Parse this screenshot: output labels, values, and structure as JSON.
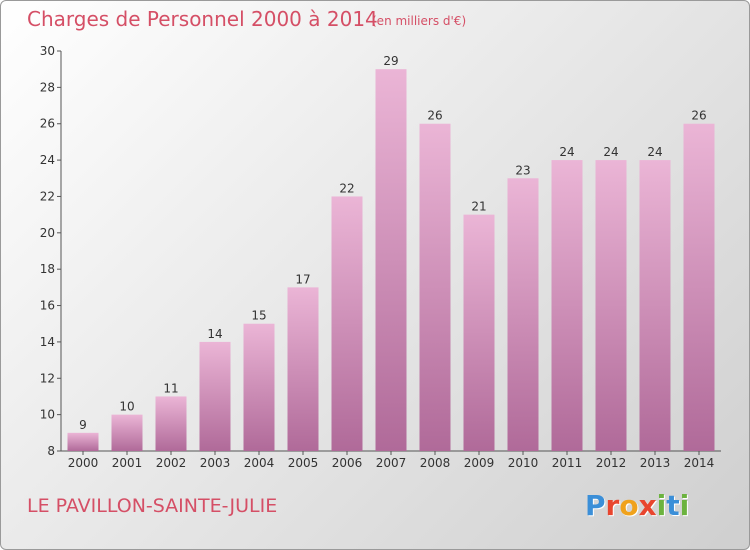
{
  "header": {
    "title": "Charges de Personnel 2000 à 2014",
    "subtitle": "(en milliers d'€)"
  },
  "footer": {
    "place": "LE PAVILLON-SAINTE-JULIE",
    "logo": {
      "text": "Proxiti",
      "letter_colors": [
        "#3b8fd8",
        "#e8452e",
        "#f0a21c",
        "#e8452e",
        "#6cb33f",
        "#3b8fd8",
        "#6cb33f"
      ]
    }
  },
  "colors": {
    "bar_light": "#ebb5d6",
    "bar_dark": "#b06a99",
    "accent": "#d54f66"
  },
  "chart_data": {
    "type": "bar",
    "title": "Charges de Personnel 2000 à 2014",
    "subtitle": "(en milliers d'€)",
    "categories": [
      "2000",
      "2001",
      "2002",
      "2003",
      "2004",
      "2005",
      "2006",
      "2007",
      "2008",
      "2009",
      "2010",
      "2011",
      "2012",
      "2013",
      "2014"
    ],
    "values": [
      9,
      10,
      11,
      14,
      15,
      17,
      22,
      29,
      26,
      21,
      23,
      24,
      24,
      24,
      26
    ],
    "ylim": [
      8,
      30
    ],
    "yticks": [
      8,
      10,
      12,
      14,
      16,
      18,
      20,
      22,
      24,
      26,
      28,
      30
    ],
    "xlabel": "",
    "ylabel": "",
    "grid": false,
    "legend": "none"
  }
}
